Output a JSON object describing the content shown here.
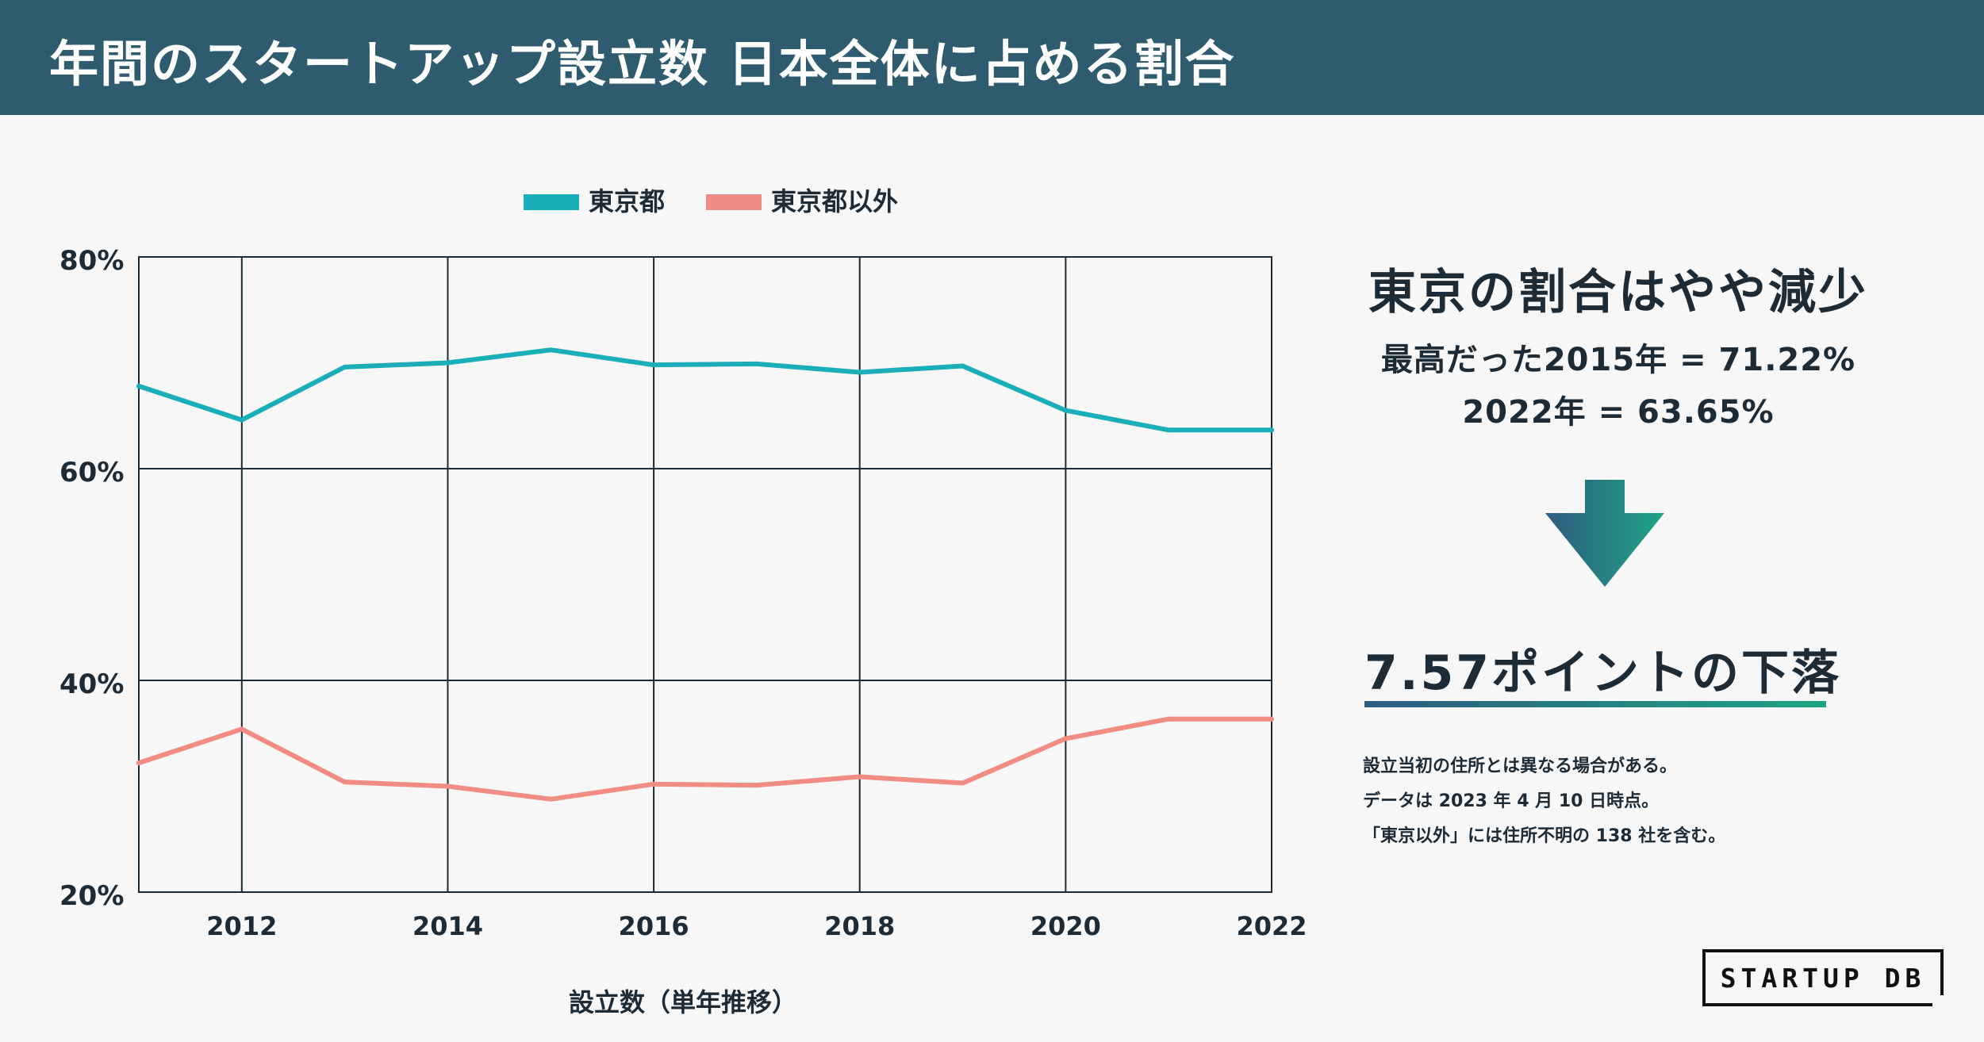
{
  "header": {
    "title": "年間のスタートアップ設立数 日本全体に占める割合"
  },
  "chart_data": {
    "type": "line",
    "x": [
      2011,
      2012,
      2013,
      2014,
      2015,
      2016,
      2017,
      2018,
      2019,
      2020,
      2021,
      2022
    ],
    "series": [
      {
        "name": "東京都",
        "color": "#1aaeb9",
        "values": [
          67.8,
          64.6,
          69.6,
          70.0,
          71.22,
          69.8,
          69.9,
          69.1,
          69.7,
          65.5,
          63.65,
          63.65
        ]
      },
      {
        "name": "東京都以外",
        "color": "#f08c82",
        "values": [
          32.2,
          35.4,
          30.4,
          30.0,
          28.78,
          30.2,
          30.1,
          30.9,
          30.3,
          34.5,
          36.35,
          36.35
        ]
      }
    ],
    "xlim": [
      2011,
      2022
    ],
    "ylim": [
      20,
      80
    ],
    "yticks": [
      20,
      40,
      60,
      80
    ],
    "ytick_labels": [
      "20%",
      "40%",
      "60%",
      "80%"
    ],
    "xticks": [
      2012,
      2014,
      2016,
      2018,
      2020,
      2022
    ],
    "xtick_labels": [
      "2012",
      "2014",
      "2016",
      "2018",
      "2020",
      "2022"
    ],
    "xlabel": "設立数（単年推移）",
    "ylabel": "",
    "grid": true,
    "legend_position": "top"
  },
  "summary": {
    "headline": "東京の割合はやや減少",
    "line1": "最高だった2015年 = 71.22%",
    "line2": "2022年 = 63.65%",
    "result": "7.57ポイントの下落"
  },
  "notes": [
    "設立当初の住所とは異なる場合がある。",
    "データは 2023 年 4 月 10 日時点。",
    "「東京以外」には住所不明の 138 社を含む。"
  ],
  "logo": {
    "text": "STARTUP DB"
  },
  "colors": {
    "header": "#2e5b6d",
    "tokyo": "#1aaeb9",
    "other": "#f08c82",
    "grid": "#1c2b36"
  }
}
